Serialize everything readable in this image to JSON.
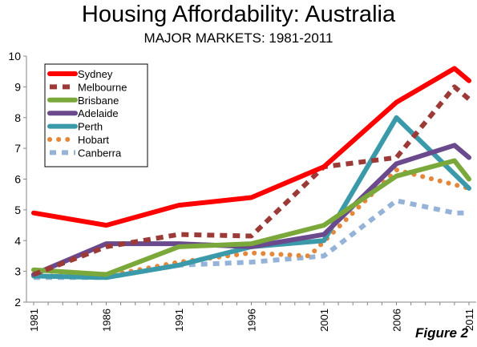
{
  "chart_data": {
    "type": "line",
    "title": "Housing Affordability: Australia",
    "subtitle": "MAJOR MARKETS: 1981-2011",
    "figure_label": "Figure 2",
    "x": [
      "1981",
      "1986",
      "1991",
      "1996",
      "2001",
      "2006",
      "2011"
    ],
    "x_values": [
      1981,
      1986,
      1991,
      1996,
      2001,
      2006,
      2011
    ],
    "ylim": [
      2,
      10
    ],
    "yticks": [
      2,
      3,
      4,
      5,
      6,
      7,
      8,
      9,
      10
    ],
    "grid": false,
    "legend_position": "top-left",
    "series": [
      {
        "name": "Sydney",
        "color": "#ff0000",
        "style": "solid",
        "points": [
          [
            1981,
            4.9
          ],
          [
            1986,
            4.5
          ],
          [
            1991,
            5.15
          ],
          [
            1994,
            5.3
          ],
          [
            1996,
            5.4
          ],
          [
            2001,
            6.4
          ],
          [
            2006,
            8.5
          ],
          [
            2010,
            9.6
          ],
          [
            2011,
            9.2
          ]
        ]
      },
      {
        "name": "Melbourne",
        "color": "#9b3a36",
        "style": "dashed",
        "points": [
          [
            1981,
            2.9
          ],
          [
            1986,
            3.8
          ],
          [
            1991,
            4.2
          ],
          [
            1996,
            4.15
          ],
          [
            2001,
            6.4
          ],
          [
            2006,
            6.7
          ],
          [
            2010,
            9.0
          ],
          [
            2011,
            8.6
          ]
        ]
      },
      {
        "name": "Brisbane",
        "color": "#7aa83a",
        "style": "solid",
        "points": [
          [
            1981,
            3.05
          ],
          [
            1986,
            2.9
          ],
          [
            1991,
            3.8
          ],
          [
            1996,
            3.9
          ],
          [
            2001,
            4.5
          ],
          [
            2006,
            6.1
          ],
          [
            2010,
            6.6
          ],
          [
            2011,
            6.0
          ]
        ]
      },
      {
        "name": "Adelaide",
        "color": "#6a4a8c",
        "style": "solid",
        "points": [
          [
            1981,
            2.9
          ],
          [
            1986,
            3.9
          ],
          [
            1991,
            3.9
          ],
          [
            1996,
            3.8
          ],
          [
            2001,
            4.2
          ],
          [
            2006,
            6.5
          ],
          [
            2010,
            7.1
          ],
          [
            2011,
            6.7
          ]
        ]
      },
      {
        "name": "Perth",
        "color": "#3a9aaa",
        "style": "solid",
        "points": [
          [
            1981,
            2.85
          ],
          [
            1986,
            2.8
          ],
          [
            1991,
            3.2
          ],
          [
            1996,
            3.8
          ],
          [
            2001,
            4.0
          ],
          [
            2006,
            8.0
          ],
          [
            2011,
            5.7
          ]
        ]
      },
      {
        "name": "Hobart",
        "color": "#e3873a",
        "style": "dotted",
        "points": [
          [
            1981,
            2.85
          ],
          [
            1986,
            2.85
          ],
          [
            1991,
            3.3
          ],
          [
            1996,
            3.6
          ],
          [
            2000,
            3.5
          ],
          [
            2006,
            6.3
          ],
          [
            2011,
            5.7
          ]
        ]
      },
      {
        "name": "Canberra",
        "color": "#95b3d7",
        "style": "dashed",
        "points": [
          [
            1981,
            2.8
          ],
          [
            1986,
            2.8
          ],
          [
            1991,
            3.2
          ],
          [
            1996,
            3.3
          ],
          [
            2001,
            3.5
          ],
          [
            2006,
            5.3
          ],
          [
            2010,
            4.9
          ],
          [
            2011,
            4.9
          ]
        ]
      }
    ]
  }
}
